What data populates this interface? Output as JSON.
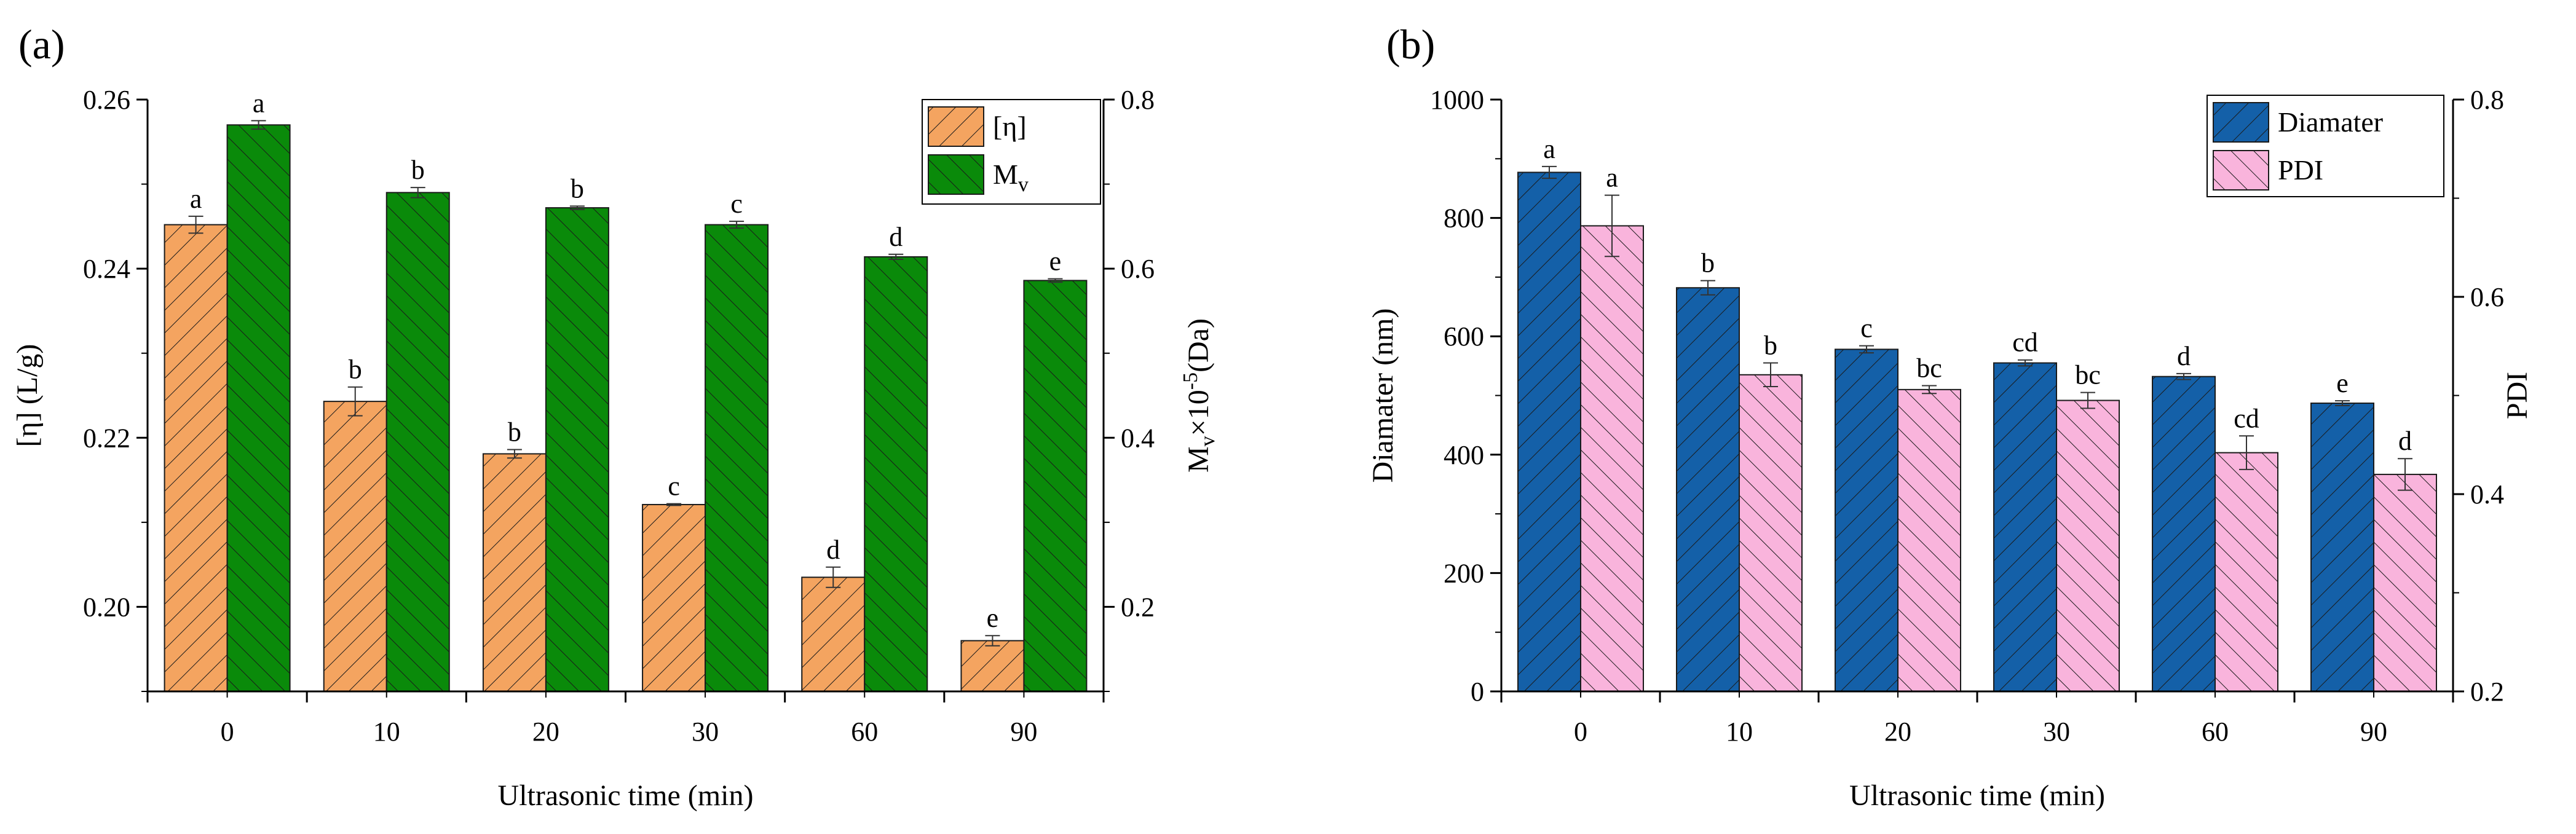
{
  "chart_data": [
    {
      "panel_label": "(a)",
      "type": "bar",
      "title": "",
      "xlabel": "Ultrasonic time (min)",
      "ylabel": "[η] (L/g)",
      "y2label_main": "M",
      "y2label_sub": "v",
      "y2label_rest": "×10",
      "y2label_exp": "-5",
      "y2label_unit": "(Da)",
      "categories": [
        "0",
        "10",
        "20",
        "30",
        "60",
        "90"
      ],
      "ylim": [
        0.19,
        0.26
      ],
      "y2lim": [
        0.1,
        0.8
      ],
      "yticks": [
        "0.20",
        "0.22",
        "0.24",
        "0.26"
      ],
      "y2ticks": [
        "0.2",
        "0.4",
        "0.6",
        "0.8"
      ],
      "legend_position": "top-right",
      "series": [
        {
          "name": "[η]",
          "axis": "left",
          "color": "#f4a460",
          "hatch": "forward-diagonal",
          "values": [
            0.2452,
            0.2243,
            0.2181,
            0.2121,
            0.2035,
            0.196
          ],
          "errors": [
            0.001,
            0.0017,
            0.0005,
            0.0001,
            0.0012,
            0.0006
          ],
          "letters": [
            "a",
            "b",
            "b",
            "c",
            "d",
            "e"
          ]
        },
        {
          "name": "M",
          "name_sub": "v",
          "axis": "right",
          "color": "#0a8a0a",
          "hatch": "back-diagonal",
          "values": [
            0.77,
            0.69,
            0.672,
            0.652,
            0.614,
            0.586
          ],
          "errors": [
            0.005,
            0.006,
            0.002,
            0.004,
            0.003,
            0.002
          ],
          "letters": [
            "a",
            "b",
            "b",
            "c",
            "d",
            "e"
          ]
        }
      ]
    },
    {
      "panel_label": "(b)",
      "type": "bar",
      "title": "",
      "xlabel": "Ultrasonic time (min)",
      "ylabel": "Diamater (nm)",
      "y2label": "PDI",
      "categories": [
        "0",
        "10",
        "20",
        "30",
        "60",
        "90"
      ],
      "ylim": [
        0,
        1000
      ],
      "y2lim": [
        0.2,
        0.8
      ],
      "yticks": [
        "0",
        "200",
        "400",
        "600",
        "800",
        "1000"
      ],
      "y2ticks": [
        "0.2",
        "0.4",
        "0.6",
        "0.8"
      ],
      "legend_position": "top-right",
      "series": [
        {
          "name": "Diamater",
          "axis": "left",
          "color": "#1460a8",
          "hatch": "forward-diagonal",
          "values": [
            877,
            682,
            578,
            555,
            532,
            487
          ],
          "errors": [
            10,
            12,
            6,
            5,
            5,
            4
          ],
          "letters": [
            "a",
            "b",
            "c",
            "cd",
            "d",
            "e"
          ]
        },
        {
          "name": "PDI",
          "axis": "right",
          "color": "#f9b4dc",
          "hatch": "back-diagonal",
          "values": [
            0.672,
            0.521,
            0.506,
            0.495,
            0.442,
            0.42
          ],
          "errors": [
            0.031,
            0.012,
            0.004,
            0.008,
            0.017,
            0.016
          ],
          "letters": [
            "a",
            "b",
            "bc",
            "bc",
            "cd",
            "d"
          ]
        }
      ]
    }
  ]
}
